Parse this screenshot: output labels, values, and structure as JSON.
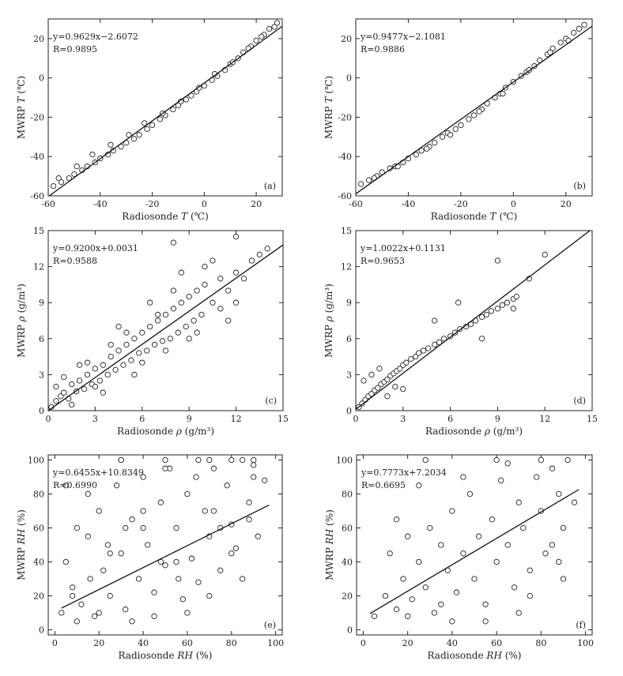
{
  "chart_data": [
    {
      "type": "scatter",
      "panel_label": "(a)",
      "xlabel": "Radiosonde T (℃)",
      "ylabel": "MWRP T (℃)",
      "xlim": [
        -60,
        30
      ],
      "ylim": [
        -60,
        30
      ],
      "xticks": [
        -60,
        -40,
        -20,
        0,
        20
      ],
      "yticks": [
        -60,
        -40,
        -20,
        0,
        20
      ],
      "equation": "y=0.9629x−2.6072",
      "r_text": "R=0.9895",
      "fit": {
        "slope": 0.9629,
        "intercept": -2.6072
      },
      "series": [
        {
          "x": [
            -58,
            -55,
            -52,
            -50,
            -47,
            -45,
            -42,
            -40,
            -37,
            -35,
            -32,
            -30,
            -27,
            -25,
            -22,
            -20,
            -17,
            -15,
            -12,
            -10,
            -7,
            -5,
            -3,
            0,
            3,
            5,
            8,
            10,
            13,
            15,
            18,
            20,
            23,
            25,
            28,
            -56,
            -49,
            -43,
            -36,
            -29,
            -23,
            -16,
            -9,
            -2,
            4,
            11,
            17,
            22,
            27
          ],
          "y": [
            -55,
            -53,
            -51,
            -49,
            -47,
            -45,
            -43,
            -41,
            -39,
            -37,
            -35,
            -33,
            -31,
            -29,
            -26,
            -24,
            -21,
            -19,
            -16,
            -14,
            -11,
            -9,
            -7,
            -4,
            -1,
            1,
            4,
            7,
            10,
            13,
            16,
            19,
            22,
            25,
            28,
            -51,
            -45,
            -39,
            -34,
            -29,
            -23,
            -18,
            -12,
            -5,
            2,
            8,
            15,
            21,
            26
          ]
        }
      ]
    },
    {
      "type": "scatter",
      "panel_label": "(b)",
      "xlabel": "Radiosonde T (℃)",
      "ylabel": "MWRP T (℃)",
      "xlim": [
        -60,
        30
      ],
      "ylim": [
        -60,
        30
      ],
      "xticks": [
        -60,
        -40,
        -20,
        0,
        20
      ],
      "yticks": [
        -60,
        -40,
        -20,
        0,
        20
      ],
      "equation": "y=0.9477x−2.1081",
      "r_text": "R=0.9886",
      "fit": {
        "slope": 0.9477,
        "intercept": -2.1081
      },
      "series": [
        {
          "x": [
            -58,
            -55,
            -52,
            -50,
            -47,
            -45,
            -42,
            -40,
            -37,
            -35,
            -32,
            -30,
            -27,
            -25,
            -22,
            -20,
            -17,
            -15,
            -12,
            -10,
            -7,
            -5,
            -3,
            0,
            3,
            5,
            8,
            10,
            13,
            15,
            18,
            20,
            23,
            25,
            27,
            -53,
            -44,
            -33,
            -24,
            -13,
            -4,
            6,
            14,
            21
          ],
          "y": [
            -54,
            -52,
            -50,
            -48,
            -46,
            -45,
            -43,
            -41,
            -39,
            -37,
            -35,
            -33,
            -30,
            -28,
            -26,
            -24,
            -21,
            -19,
            -16,
            -13,
            -10,
            -8,
            -5,
            -2,
            1,
            3,
            6,
            9,
            12,
            15,
            18,
            20,
            23,
            25,
            27,
            -51,
            -45,
            -36,
            -29,
            -17,
            -8,
            4,
            13,
            19
          ]
        }
      ]
    },
    {
      "type": "scatter",
      "panel_label": "(c)",
      "xlabel": "Radiosonde ρ (g/m³)",
      "ylabel": "MWRP ρ (g/m³)",
      "xlim": [
        0,
        15
      ],
      "ylim": [
        0,
        15
      ],
      "xticks": [
        0,
        3,
        6,
        9,
        12,
        15
      ],
      "yticks": [
        0,
        3,
        6,
        9,
        12,
        15
      ],
      "equation": "y=0.9200x+0.0031",
      "r_text": "R=0.9588",
      "fit": {
        "slope": 0.92,
        "intercept": 0.0031
      },
      "series": [
        {
          "x": [
            0.2,
            0.5,
            0.8,
            1.0,
            1.3,
            1.5,
            1.8,
            2.0,
            2.3,
            2.5,
            2.8,
            3.0,
            3.3,
            3.5,
            3.8,
            4.0,
            4.3,
            4.5,
            4.8,
            5.0,
            5.3,
            5.5,
            5.8,
            6.0,
            6.3,
            6.5,
            6.8,
            7.0,
            7.3,
            7.5,
            7.8,
            8.0,
            8.3,
            8.5,
            8.8,
            9.0,
            9.3,
            9.5,
            9.8,
            10.0,
            10.5,
            11.0,
            11.5,
            12.0,
            12.5,
            13.0,
            13.5,
            14.0,
            1.0,
            2.0,
            3.0,
            4.0,
            5.0,
            6.0,
            7.0,
            8.0,
            9.0,
            10.0,
            11.0,
            12.0,
            0.5,
            1.5,
            2.5,
            3.5,
            4.5,
            5.5,
            6.5,
            7.5,
            8.5,
            9.5,
            10.5,
            11.5,
            8.0,
            12.0
          ],
          "y": [
            0.3,
            0.8,
            1.2,
            1.5,
            1.0,
            2.2,
            1.6,
            2.5,
            1.8,
            3.0,
            2.2,
            3.5,
            2.5,
            3.8,
            3.0,
            4.5,
            3.4,
            5.0,
            3.8,
            5.5,
            4.2,
            6.0,
            4.8,
            6.5,
            5.0,
            7.0,
            5.5,
            7.5,
            5.8,
            8.0,
            6.0,
            8.5,
            6.5,
            9.0,
            7.0,
            9.5,
            7.5,
            10.0,
            8.0,
            10.5,
            9.0,
            11.0,
            10.0,
            11.5,
            11.0,
            12.5,
            13.0,
            13.5,
            2.8,
            3.8,
            2.0,
            5.5,
            6.5,
            4.0,
            8.0,
            10.0,
            6.0,
            12.0,
            8.5,
            9.0,
            2.0,
            0.5,
            4.0,
            1.5,
            7.0,
            3.0,
            9.0,
            5.0,
            11.5,
            6.5,
            12.5,
            7.5,
            14.0,
            14.5
          ]
        }
      ]
    },
    {
      "type": "scatter",
      "panel_label": "(d)",
      "xlabel": "Radiosonde ρ (g/m³)",
      "ylabel": "MWRP ρ (g/m³)",
      "xlim": [
        0,
        15
      ],
      "ylim": [
        0,
        15
      ],
      "xticks": [
        0,
        3,
        6,
        9,
        12,
        15
      ],
      "yticks": [
        0,
        3,
        6,
        9,
        12,
        15
      ],
      "equation": "y=1.0022x+0.1131",
      "r_text": "R=0.9653",
      "fit": {
        "slope": 1.0022,
        "intercept": 0.1131
      },
      "series": [
        {
          "x": [
            0.2,
            0.4,
            0.6,
            0.8,
            1.0,
            1.2,
            1.4,
            1.6,
            1.8,
            2.0,
            2.2,
            2.4,
            2.6,
            2.8,
            3.0,
            3.2,
            3.5,
            3.8,
            4.0,
            4.3,
            4.6,
            5.0,
            5.3,
            5.6,
            6.0,
            6.3,
            6.6,
            7.0,
            7.3,
            7.6,
            8.0,
            8.3,
            8.6,
            9.0,
            9.3,
            9.6,
            10.0,
            10.2,
            0.5,
            1.0,
            1.5,
            2.0,
            2.5,
            3.0,
            5.0,
            6.5,
            8.0,
            9.0,
            11.0,
            12.0,
            10.0
          ],
          "y": [
            0.3,
            0.6,
            0.9,
            1.2,
            1.4,
            1.7,
            1.9,
            2.2,
            2.4,
            2.6,
            2.9,
            3.1,
            3.3,
            3.5,
            3.8,
            4.0,
            4.3,
            4.5,
            4.8,
            5.0,
            5.2,
            5.5,
            5.7,
            6.0,
            6.2,
            6.5,
            6.8,
            7.0,
            7.2,
            7.5,
            7.8,
            8.0,
            8.3,
            8.5,
            8.8,
            9.0,
            9.3,
            9.5,
            2.5,
            3.0,
            3.5,
            1.2,
            2.0,
            1.8,
            7.5,
            9.0,
            6.0,
            12.5,
            11.0,
            13.0,
            8.5
          ]
        }
      ]
    },
    {
      "type": "scatter",
      "panel_label": "(e)",
      "xlabel": "Radiosonde RH (%)",
      "ylabel": "MWRP RH (%)",
      "xlim": [
        -3,
        103
      ],
      "ylim": [
        -3,
        103
      ],
      "xticks": [
        0,
        20,
        40,
        60,
        80,
        100
      ],
      "yticks": [
        0,
        20,
        40,
        60,
        80,
        100
      ],
      "equation": "y=0.6455x+10.8349",
      "r_text": "R=0.6990",
      "fit": {
        "slope": 0.6455,
        "intercept": 10.8349
      },
      "series": [
        {
          "x": [
            3,
            5,
            8,
            10,
            12,
            15,
            18,
            20,
            22,
            25,
            28,
            30,
            32,
            35,
            38,
            40,
            42,
            45,
            48,
            50,
            52,
            55,
            58,
            60,
            62,
            65,
            68,
            70,
            72,
            75,
            78,
            80,
            82,
            85,
            88,
            90,
            92,
            95,
            5,
            10,
            15,
            20,
            25,
            30,
            35,
            40,
            45,
            50,
            55,
            60,
            65,
            70,
            75,
            80,
            85,
            90,
            8,
            16,
            24,
            32,
            40,
            48,
            56,
            64,
            72,
            80,
            88,
            30,
            50,
            70,
            90
          ],
          "y": [
            10,
            40,
            25,
            60,
            15,
            55,
            8,
            70,
            35,
            20,
            85,
            45,
            12,
            65,
            30,
            90,
            50,
            22,
            75,
            38,
            95,
            60,
            18,
            80,
            42,
            28,
            70,
            55,
            95,
            35,
            85,
            62,
            48,
            100,
            75,
            90,
            55,
            88,
            85,
            5,
            80,
            10,
            45,
            100,
            5,
            60,
            8,
            95,
            40,
            10,
            100,
            20,
            60,
            100,
            30,
            97,
            20,
            30,
            50,
            60,
            70,
            40,
            30,
            90,
            70,
            45,
            65,
            100,
            100,
            100,
            100
          ]
        }
      ]
    },
    {
      "type": "scatter",
      "panel_label": "(f)",
      "xlabel": "Radiosonde RH (%)",
      "ylabel": "MWRP RH (%)",
      "xlim": [
        -3,
        103
      ],
      "ylim": [
        -3,
        103
      ],
      "xticks": [
        0,
        20,
        40,
        60,
        80,
        100
      ],
      "yticks": [
        0,
        20,
        40,
        60,
        80,
        100
      ],
      "equation": "y=0.7773x+7.2034",
      "r_text": "R=0.6695",
      "fit": {
        "slope": 0.7773,
        "intercept": 7.2034
      },
      "series": [
        {
          "x": [
            5,
            10,
            12,
            15,
            18,
            20,
            22,
            25,
            28,
            30,
            32,
            35,
            38,
            40,
            42,
            45,
            48,
            50,
            52,
            55,
            58,
            60,
            62,
            65,
            68,
            70,
            72,
            75,
            78,
            80,
            82,
            85,
            88,
            90,
            92,
            95,
            15,
            25,
            35,
            45,
            55,
            65,
            75,
            85,
            90,
            28,
            60,
            80,
            20,
            40,
            70,
            88
          ],
          "y": [
            8,
            20,
            45,
            12,
            30,
            55,
            18,
            40,
            25,
            60,
            10,
            50,
            35,
            70,
            22,
            45,
            80,
            30,
            55,
            15,
            65,
            40,
            88,
            50,
            25,
            75,
            60,
            35,
            90,
            70,
            45,
            95,
            80,
            60,
            100,
            75,
            65,
            85,
            15,
            90,
            5,
            98,
            20,
            50,
            30,
            100,
            100,
            100,
            8,
            5,
            10,
            40
          ]
        }
      ]
    }
  ]
}
